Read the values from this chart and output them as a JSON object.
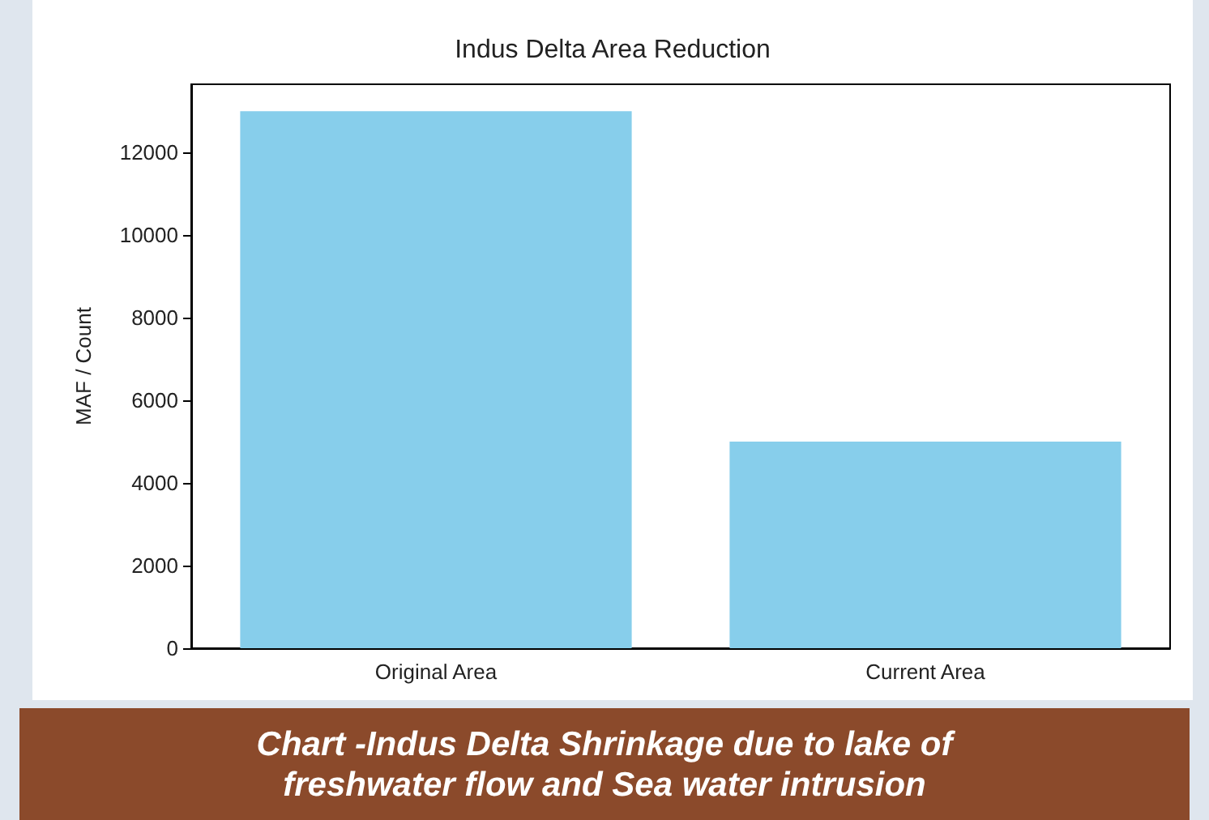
{
  "chart_data": {
    "type": "bar",
    "title": "Indus Delta Area Reduction",
    "ylabel": "MAF / Count",
    "categories": [
      "Original Area",
      "Current Area"
    ],
    "values": [
      13000,
      5000
    ],
    "color": "#87ceeb",
    "ylim": [
      0,
      13650
    ],
    "yticks": [
      0,
      2000,
      4000,
      6000,
      8000,
      10000,
      12000
    ],
    "grid": false,
    "annotations": [
      "Chart -Indus Delta Shrinkage due to lake of freshwater flow and Sea water intrusion"
    ]
  }
}
